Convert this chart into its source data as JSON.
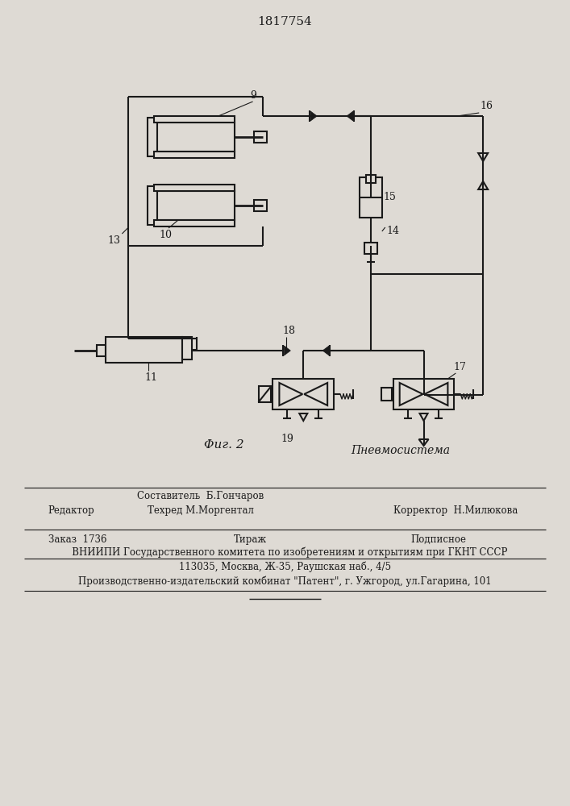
{
  "patent_number": "1817754",
  "bg": "#dedad4",
  "lc": "#1a1a1a",
  "fig2_label": "Φиг. 2",
  "pneumo_label": "Пневмосистема",
  "footer_editor": "Редактор",
  "footer_sostavitel": "Составитель  Б.Гончаров",
  "footer_tehred": "Техред М.Моргентал",
  "footer_korrektor": "Корректор  Н.Милюкова",
  "footer_zakaz": "Заказ  1736",
  "footer_tirazh": "Тираж",
  "footer_podpisnoe": "Подписное",
  "footer_vniipи": "   ВНИИПИ Государственного комитета по изобретениям и открытиям при ГКНТ СССР",
  "footer_address": "113035, Москва, Ж-35, Раушская наб., 4/5",
  "footer_patent": "Производственно-издательский комбинат \"Патент\", г. Ужгород, ул.Гагарина, 101"
}
